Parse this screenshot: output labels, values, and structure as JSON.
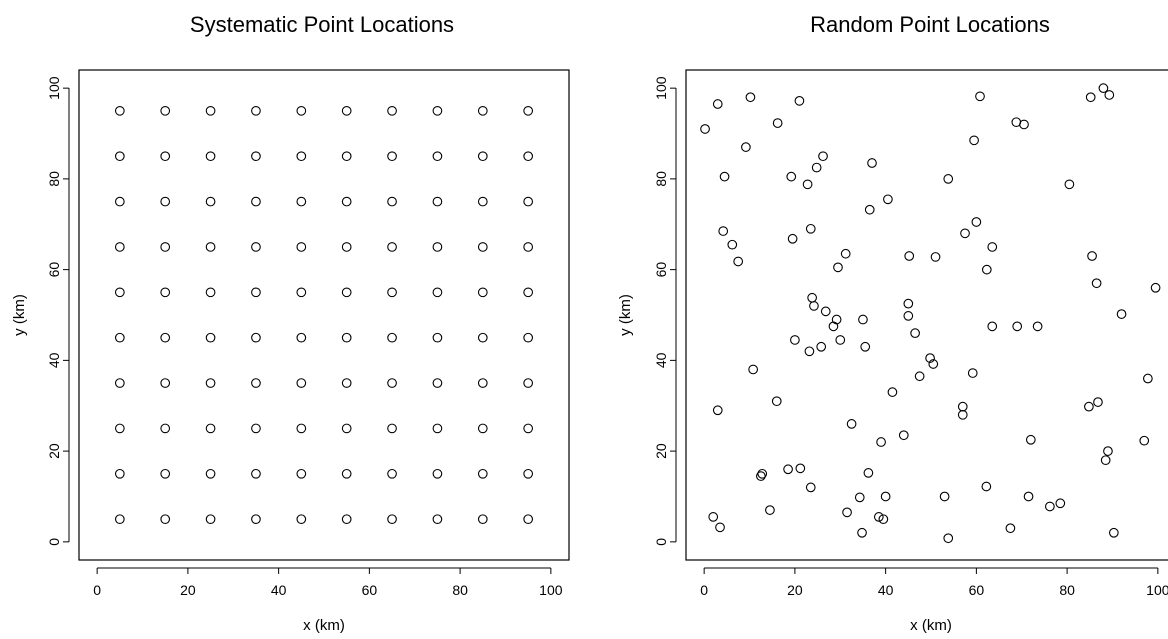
{
  "chart_data": [
    {
      "type": "scatter",
      "title": "Systematic Point Locations",
      "xlabel": "x (km)",
      "ylabel": "y (km)",
      "xlim": [
        -4,
        104
      ],
      "ylim": [
        -4,
        104
      ],
      "xticks": [
        "0",
        "20",
        "40",
        "60",
        "80",
        "100"
      ],
      "yticks": [
        "0",
        "20",
        "40",
        "60",
        "80",
        "100"
      ],
      "grid": false,
      "marker": "open-circle",
      "points": [
        [
          5,
          5
        ],
        [
          15,
          5
        ],
        [
          25,
          5
        ],
        [
          35,
          5
        ],
        [
          45,
          5
        ],
        [
          55,
          5
        ],
        [
          65,
          5
        ],
        [
          75,
          5
        ],
        [
          85,
          5
        ],
        [
          95,
          5
        ],
        [
          5,
          15
        ],
        [
          15,
          15
        ],
        [
          25,
          15
        ],
        [
          35,
          15
        ],
        [
          45,
          15
        ],
        [
          55,
          15
        ],
        [
          65,
          15
        ],
        [
          75,
          15
        ],
        [
          85,
          15
        ],
        [
          95,
          15
        ],
        [
          5,
          25
        ],
        [
          15,
          25
        ],
        [
          25,
          25
        ],
        [
          35,
          25
        ],
        [
          45,
          25
        ],
        [
          55,
          25
        ],
        [
          65,
          25
        ],
        [
          75,
          25
        ],
        [
          85,
          25
        ],
        [
          95,
          25
        ],
        [
          5,
          35
        ],
        [
          15,
          35
        ],
        [
          25,
          35
        ],
        [
          35,
          35
        ],
        [
          45,
          35
        ],
        [
          55,
          35
        ],
        [
          65,
          35
        ],
        [
          75,
          35
        ],
        [
          85,
          35
        ],
        [
          95,
          35
        ],
        [
          5,
          45
        ],
        [
          15,
          45
        ],
        [
          25,
          45
        ],
        [
          35,
          45
        ],
        [
          45,
          45
        ],
        [
          55,
          45
        ],
        [
          65,
          45
        ],
        [
          75,
          45
        ],
        [
          85,
          45
        ],
        [
          95,
          45
        ],
        [
          5,
          55
        ],
        [
          15,
          55
        ],
        [
          25,
          55
        ],
        [
          35,
          55
        ],
        [
          45,
          55
        ],
        [
          55,
          55
        ],
        [
          65,
          55
        ],
        [
          75,
          55
        ],
        [
          85,
          55
        ],
        [
          95,
          55
        ],
        [
          5,
          65
        ],
        [
          15,
          65
        ],
        [
          25,
          65
        ],
        [
          35,
          65
        ],
        [
          45,
          65
        ],
        [
          55,
          65
        ],
        [
          65,
          65
        ],
        [
          75,
          65
        ],
        [
          85,
          65
        ],
        [
          95,
          65
        ],
        [
          5,
          75
        ],
        [
          15,
          75
        ],
        [
          25,
          75
        ],
        [
          35,
          75
        ],
        [
          45,
          75
        ],
        [
          55,
          75
        ],
        [
          65,
          75
        ],
        [
          75,
          75
        ],
        [
          85,
          75
        ],
        [
          95,
          75
        ],
        [
          5,
          85
        ],
        [
          15,
          85
        ],
        [
          25,
          85
        ],
        [
          35,
          85
        ],
        [
          45,
          85
        ],
        [
          55,
          85
        ],
        [
          65,
          85
        ],
        [
          75,
          85
        ],
        [
          85,
          85
        ],
        [
          95,
          85
        ],
        [
          5,
          95
        ],
        [
          15,
          95
        ],
        [
          25,
          95
        ],
        [
          35,
          95
        ],
        [
          45,
          95
        ],
        [
          55,
          95
        ],
        [
          65,
          95
        ],
        [
          75,
          95
        ],
        [
          85,
          95
        ],
        [
          95,
          95
        ]
      ]
    },
    {
      "type": "scatter",
      "title": "Random Point Locations",
      "xlabel": "x (km)",
      "ylabel": "y (km)",
      "xlim": [
        -4,
        104
      ],
      "ylim": [
        -4,
        104
      ],
      "xticks": [
        "0",
        "20",
        "40",
        "60",
        "80",
        "100"
      ],
      "yticks": [
        "0",
        "20",
        "40",
        "60",
        "80",
        "100"
      ],
      "grid": false,
      "marker": "open-circle",
      "points": [
        [
          0.2,
          91.0
        ],
        [
          3.0,
          96.5
        ],
        [
          4.5,
          80.5
        ],
        [
          4.2,
          68.5
        ],
        [
          6.2,
          65.5
        ],
        [
          7.5,
          61.8
        ],
        [
          10.2,
          98.0
        ],
        [
          9.2,
          87.0
        ],
        [
          16.2,
          92.3
        ],
        [
          21.0,
          97.2
        ],
        [
          19.2,
          80.5
        ],
        [
          22.8,
          78.8
        ],
        [
          24.8,
          82.5
        ],
        [
          26.2,
          85.0
        ],
        [
          19.5,
          66.8
        ],
        [
          23.5,
          69.0
        ],
        [
          29.5,
          60.5
        ],
        [
          31.2,
          63.5
        ],
        [
          37.0,
          83.5
        ],
        [
          36.5,
          73.2
        ],
        [
          40.5,
          75.5
        ],
        [
          45.2,
          63.0
        ],
        [
          23.8,
          53.8
        ],
        [
          24.2,
          52.0
        ],
        [
          26.8,
          50.8
        ],
        [
          28.5,
          47.5
        ],
        [
          29.2,
          49.0
        ],
        [
          30.0,
          44.5
        ],
        [
          20.0,
          44.5
        ],
        [
          23.2,
          42.0
        ],
        [
          25.8,
          43.0
        ],
        [
          35.0,
          49.0
        ],
        [
          35.5,
          43.0
        ],
        [
          45.0,
          52.5
        ],
        [
          45.0,
          49.8
        ],
        [
          46.5,
          46.0
        ],
        [
          10.8,
          38.0
        ],
        [
          16.0,
          31.0
        ],
        [
          3.0,
          29.0
        ],
        [
          32.5,
          26.0
        ],
        [
          41.5,
          33.0
        ],
        [
          39.0,
          22.0
        ],
        [
          44.0,
          23.5
        ],
        [
          47.5,
          36.5
        ],
        [
          49.8,
          40.5
        ],
        [
          50.5,
          39.2
        ],
        [
          53.8,
          80.0
        ],
        [
          59.5,
          88.5
        ],
        [
          60.8,
          98.2
        ],
        [
          60.0,
          70.5
        ],
        [
          57.5,
          68.0
        ],
        [
          63.5,
          65.0
        ],
        [
          62.3,
          60.0
        ],
        [
          51.0,
          62.8
        ],
        [
          63.5,
          47.5
        ],
        [
          69.0,
          47.5
        ],
        [
          73.5,
          47.5
        ],
        [
          59.2,
          37.2
        ],
        [
          57.0,
          29.8
        ],
        [
          57.0,
          28.0
        ],
        [
          72.0,
          22.5
        ],
        [
          68.8,
          92.5
        ],
        [
          70.5,
          92.0
        ],
        [
          80.5,
          78.8
        ],
        [
          85.2,
          98.0
        ],
        [
          88.0,
          100.0
        ],
        [
          89.3,
          98.5
        ],
        [
          85.5,
          63.0
        ],
        [
          86.5,
          57.0
        ],
        [
          92.0,
          50.2
        ],
        [
          99.5,
          56.0
        ],
        [
          97.8,
          36.0
        ],
        [
          84.8,
          29.8
        ],
        [
          86.8,
          30.8
        ],
        [
          89.0,
          20.0
        ],
        [
          88.5,
          18.0
        ],
        [
          97.0,
          22.3
        ],
        [
          12.5,
          14.5
        ],
        [
          12.8,
          15.0
        ],
        [
          18.5,
          16.0
        ],
        [
          21.2,
          16.2
        ],
        [
          23.5,
          12.0
        ],
        [
          14.5,
          7.0
        ],
        [
          2.0,
          5.5
        ],
        [
          3.5,
          3.2
        ],
        [
          31.5,
          6.5
        ],
        [
          34.3,
          9.8
        ],
        [
          36.2,
          15.2
        ],
        [
          38.5,
          5.5
        ],
        [
          39.5,
          5.0
        ],
        [
          40.0,
          10.0
        ],
        [
          34.8,
          2.0
        ],
        [
          53.0,
          10.0
        ],
        [
          53.8,
          0.8
        ],
        [
          62.2,
          12.2
        ],
        [
          67.5,
          3.0
        ],
        [
          71.5,
          10.0
        ],
        [
          76.2,
          7.8
        ],
        [
          78.5,
          8.5
        ],
        [
          90.3,
          2.0
        ]
      ]
    }
  ]
}
